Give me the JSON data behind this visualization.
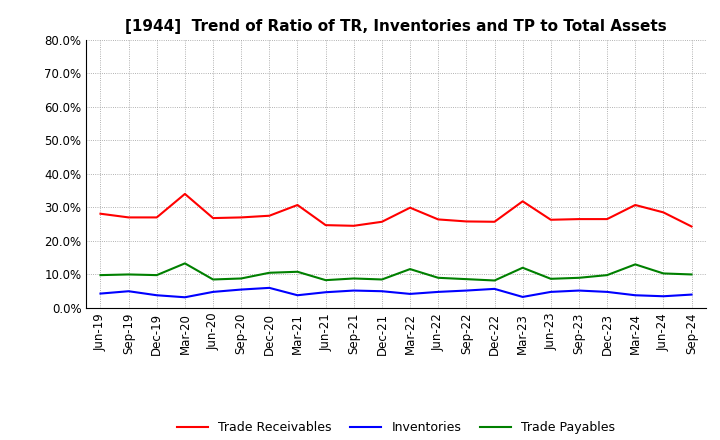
{
  "title": "[1944]  Trend of Ratio of TR, Inventories and TP to Total Assets",
  "x_labels": [
    "Jun-19",
    "Sep-19",
    "Dec-19",
    "Mar-20",
    "Jun-20",
    "Sep-20",
    "Dec-20",
    "Mar-21",
    "Jun-21",
    "Sep-21",
    "Dec-21",
    "Mar-22",
    "Jun-22",
    "Sep-22",
    "Dec-22",
    "Mar-23",
    "Jun-23",
    "Sep-23",
    "Dec-23",
    "Mar-24",
    "Jun-24",
    "Sep-24"
  ],
  "trade_receivables": [
    0.281,
    0.27,
    0.27,
    0.34,
    0.268,
    0.27,
    0.275,
    0.307,
    0.247,
    0.245,
    0.257,
    0.299,
    0.264,
    0.258,
    0.257,
    0.318,
    0.263,
    0.265,
    0.265,
    0.307,
    0.285,
    0.243
  ],
  "inventories": [
    0.043,
    0.05,
    0.038,
    0.032,
    0.048,
    0.055,
    0.06,
    0.038,
    0.047,
    0.052,
    0.05,
    0.042,
    0.048,
    0.052,
    0.057,
    0.033,
    0.048,
    0.052,
    0.048,
    0.038,
    0.035,
    0.04
  ],
  "trade_payables": [
    0.098,
    0.1,
    0.098,
    0.133,
    0.085,
    0.088,
    0.105,
    0.108,
    0.083,
    0.088,
    0.085,
    0.116,
    0.09,
    0.086,
    0.082,
    0.12,
    0.087,
    0.09,
    0.098,
    0.13,
    0.103,
    0.1
  ],
  "colors": {
    "trade_receivables": "#ff0000",
    "inventories": "#0000ff",
    "trade_payables": "#008000"
  },
  "ylim": [
    0.0,
    0.8
  ],
  "yticks": [
    0.0,
    0.1,
    0.2,
    0.3,
    0.4,
    0.5,
    0.6,
    0.7,
    0.8
  ],
  "background_color": "#ffffff",
  "grid_color": "#999999",
  "legend_labels": [
    "Trade Receivables",
    "Inventories",
    "Trade Payables"
  ],
  "title_fontsize": 11,
  "tick_fontsize": 8.5,
  "legend_fontsize": 9
}
